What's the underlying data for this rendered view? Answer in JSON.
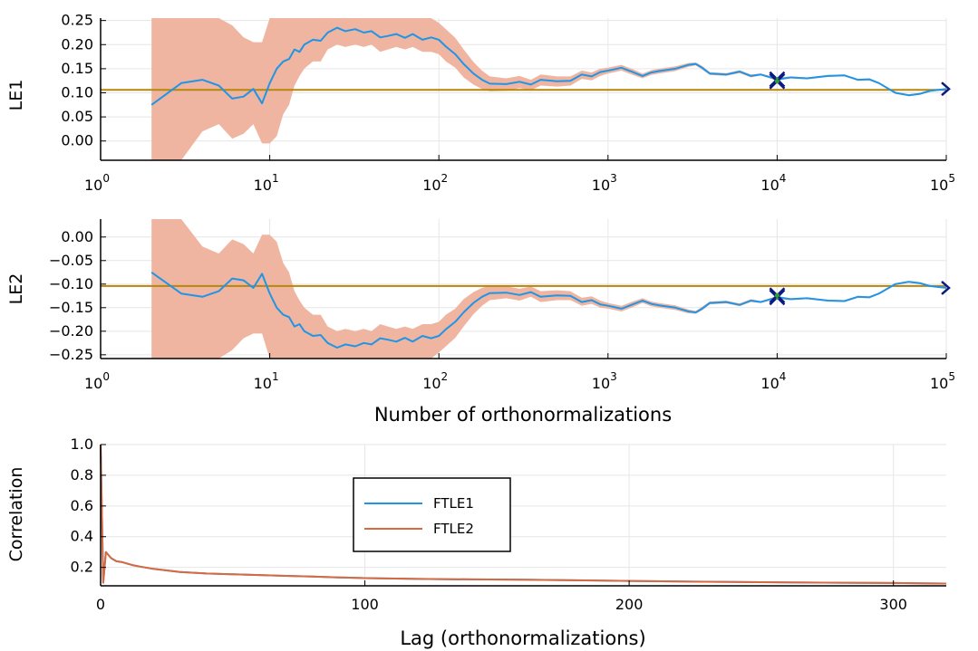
{
  "chart_data": [
    {
      "type": "line",
      "ylabel": "LE1",
      "xlabel": "",
      "xscale": "log10",
      "xlim": [
        1,
        100000
      ],
      "ylim": [
        -0.04,
        0.255
      ],
      "grid": true,
      "x_ticks": [
        {
          "base": "10",
          "exp": "0"
        },
        {
          "base": "10",
          "exp": "1"
        },
        {
          "base": "10",
          "exp": "2"
        },
        {
          "base": "10",
          "exp": "3"
        },
        {
          "base": "10",
          "exp": "4"
        },
        {
          "base": "10",
          "exp": "5"
        }
      ],
      "y_ticks": [
        {
          "v": 0.25,
          "label": "0.25"
        },
        {
          "v": 0.2,
          "label": "0.20"
        },
        {
          "v": 0.15,
          "label": "0.15"
        },
        {
          "v": 0.1,
          "label": "0.10"
        },
        {
          "v": 0.05,
          "label": "0.05"
        },
        {
          "v": 0.0,
          "label": "0.00"
        }
      ],
      "reference_line": 0.106,
      "x": [
        2,
        3,
        4,
        5,
        6,
        7,
        8,
        9,
        10,
        11,
        12,
        13,
        14,
        15,
        16,
        18,
        20,
        22,
        25,
        28,
        32,
        36,
        40,
        45,
        50,
        56,
        63,
        70,
        80,
        90,
        100,
        110,
        125,
        140,
        160,
        180,
        200,
        250,
        300,
        350,
        400,
        500,
        600,
        700,
        800,
        900,
        1000,
        1200,
        1400,
        1600,
        1800,
        2000,
        2500,
        3000,
        3300,
        3600,
        4000,
        5000,
        6000,
        7000,
        8000,
        10000,
        12000,
        15000,
        20000,
        25000,
        30000,
        35000,
        40000,
        50000,
        60000,
        70000,
        80000,
        100000
      ],
      "mean": [
        0.075,
        0.12,
        0.127,
        0.115,
        0.088,
        0.092,
        0.108,
        0.078,
        0.12,
        0.15,
        0.165,
        0.17,
        0.19,
        0.185,
        0.2,
        0.21,
        0.208,
        0.225,
        0.235,
        0.228,
        0.232,
        0.225,
        0.228,
        0.215,
        0.218,
        0.222,
        0.214,
        0.222,
        0.21,
        0.215,
        0.21,
        0.196,
        0.18,
        0.16,
        0.14,
        0.127,
        0.119,
        0.118,
        0.123,
        0.117,
        0.127,
        0.124,
        0.125,
        0.138,
        0.134,
        0.143,
        0.146,
        0.152,
        0.143,
        0.135,
        0.142,
        0.145,
        0.15,
        0.158,
        0.16,
        0.152,
        0.14,
        0.138,
        0.144,
        0.135,
        0.138,
        0.128,
        0.132,
        0.13,
        0.135,
        0.136,
        0.127,
        0.128,
        0.12,
        0.1,
        0.095,
        0.098,
        0.104,
        0.108
      ],
      "band_upper": [
        0.255,
        0.255,
        0.255,
        0.255,
        0.24,
        0.215,
        0.205,
        0.205,
        0.255,
        0.255,
        0.255,
        0.255,
        0.255,
        0.255,
        0.255,
        0.255,
        0.255,
        0.255,
        0.255,
        0.255,
        0.255,
        0.255,
        0.255,
        0.255,
        0.255,
        0.255,
        0.255,
        0.255,
        0.255,
        0.255,
        0.245,
        0.232,
        0.214,
        0.19,
        0.164,
        0.146,
        0.134,
        0.13,
        0.135,
        0.127,
        0.138,
        0.134,
        0.134,
        0.146,
        0.142,
        0.15,
        0.152,
        0.158,
        0.149,
        0.14,
        0.147,
        0.15,
        0.155,
        0.162,
        0.163,
        0.156,
        0.143,
        0.141,
        0.147,
        0.138,
        0.14,
        0.131,
        0.134,
        0.132,
        0.137,
        0.138,
        0.129,
        0.13,
        0.122,
        0.102,
        0.097,
        0.1,
        0.106,
        0.109
      ],
      "band_lower": [
        -0.04,
        -0.04,
        0.02,
        0.035,
        0.005,
        0.015,
        0.035,
        -0.005,
        -0.005,
        0.01,
        0.055,
        0.075,
        0.115,
        0.135,
        0.15,
        0.165,
        0.165,
        0.19,
        0.2,
        0.195,
        0.2,
        0.195,
        0.2,
        0.185,
        0.19,
        0.195,
        0.19,
        0.195,
        0.185,
        0.185,
        0.18,
        0.165,
        0.152,
        0.132,
        0.117,
        0.108,
        0.103,
        0.104,
        0.11,
        0.105,
        0.115,
        0.113,
        0.115,
        0.129,
        0.126,
        0.135,
        0.14,
        0.146,
        0.137,
        0.13,
        0.137,
        0.14,
        0.145,
        0.154,
        0.157,
        0.148,
        0.137,
        0.135,
        0.141,
        0.132,
        0.136,
        0.125,
        0.13,
        0.128,
        0.133,
        0.134,
        0.125,
        0.126,
        0.118,
        0.098,
        0.093,
        0.096,
        0.102,
        0.107
      ],
      "markers": [
        {
          "x": 10000,
          "y": 0.128,
          "shape": "x"
        },
        {
          "x": 10000,
          "y": 0.124,
          "shape": "x"
        },
        {
          "x": 100000,
          "y": 0.108,
          "shape": "triangle-right"
        }
      ],
      "colors": {
        "mean": "#1f95e8",
        "band": "#efb5a0",
        "reference": "#b8860b",
        "markers": "#0b1a80",
        "marker_mid": "#2e9c3c"
      }
    },
    {
      "type": "line",
      "ylabel": "LE2",
      "xlabel": "Number of orthonormalizations",
      "xscale": "log10",
      "xlim": [
        1,
        100000
      ],
      "ylim": [
        -0.258,
        0.038
      ],
      "grid": true,
      "x_ticks": [
        {
          "base": "10",
          "exp": "0"
        },
        {
          "base": "10",
          "exp": "1"
        },
        {
          "base": "10",
          "exp": "2"
        },
        {
          "base": "10",
          "exp": "3"
        },
        {
          "base": "10",
          "exp": "4"
        },
        {
          "base": "10",
          "exp": "5"
        }
      ],
      "y_ticks": [
        {
          "v": 0.0,
          "label": "0.00"
        },
        {
          "v": -0.05,
          "label": "−0.05"
        },
        {
          "v": -0.1,
          "label": "−0.10"
        },
        {
          "v": -0.15,
          "label": "−0.15"
        },
        {
          "v": -0.2,
          "label": "−0.20"
        },
        {
          "v": -0.25,
          "label": "−0.25"
        }
      ],
      "reference_line": -0.104,
      "x": [
        2,
        3,
        4,
        5,
        6,
        7,
        8,
        9,
        10,
        11,
        12,
        13,
        14,
        15,
        16,
        18,
        20,
        22,
        25,
        28,
        32,
        36,
        40,
        45,
        50,
        56,
        63,
        70,
        80,
        90,
        100,
        110,
        125,
        140,
        160,
        180,
        200,
        250,
        300,
        350,
        400,
        500,
        600,
        700,
        800,
        900,
        1000,
        1200,
        1400,
        1600,
        1800,
        2000,
        2500,
        3000,
        3300,
        3600,
        4000,
        5000,
        6000,
        7000,
        8000,
        10000,
        12000,
        15000,
        20000,
        25000,
        30000,
        35000,
        40000,
        50000,
        60000,
        70000,
        80000,
        100000
      ],
      "mean": [
        -0.075,
        -0.12,
        -0.127,
        -0.115,
        -0.088,
        -0.092,
        -0.108,
        -0.078,
        -0.12,
        -0.15,
        -0.165,
        -0.17,
        -0.19,
        -0.185,
        -0.2,
        -0.21,
        -0.208,
        -0.225,
        -0.235,
        -0.228,
        -0.232,
        -0.225,
        -0.228,
        -0.215,
        -0.218,
        -0.222,
        -0.214,
        -0.222,
        -0.21,
        -0.215,
        -0.21,
        -0.196,
        -0.18,
        -0.16,
        -0.14,
        -0.127,
        -0.119,
        -0.118,
        -0.123,
        -0.117,
        -0.127,
        -0.124,
        -0.125,
        -0.138,
        -0.134,
        -0.143,
        -0.146,
        -0.152,
        -0.143,
        -0.135,
        -0.142,
        -0.145,
        -0.15,
        -0.158,
        -0.16,
        -0.152,
        -0.14,
        -0.138,
        -0.144,
        -0.135,
        -0.138,
        -0.128,
        -0.132,
        -0.13,
        -0.135,
        -0.136,
        -0.127,
        -0.128,
        -0.12,
        -0.1,
        -0.095,
        -0.098,
        -0.104,
        -0.108
      ],
      "band_upper": [
        0.038,
        0.038,
        -0.02,
        -0.035,
        -0.005,
        -0.015,
        -0.035,
        0.005,
        0.005,
        -0.01,
        -0.055,
        -0.075,
        -0.115,
        -0.135,
        -0.15,
        -0.165,
        -0.165,
        -0.19,
        -0.2,
        -0.195,
        -0.2,
        -0.195,
        -0.2,
        -0.185,
        -0.19,
        -0.195,
        -0.19,
        -0.195,
        -0.185,
        -0.185,
        -0.18,
        -0.165,
        -0.152,
        -0.132,
        -0.117,
        -0.108,
        -0.103,
        -0.104,
        -0.11,
        -0.105,
        -0.115,
        -0.113,
        -0.115,
        -0.129,
        -0.126,
        -0.135,
        -0.14,
        -0.146,
        -0.137,
        -0.13,
        -0.137,
        -0.14,
        -0.145,
        -0.154,
        -0.157,
        -0.148,
        -0.137,
        -0.135,
        -0.141,
        -0.132,
        -0.136,
        -0.125,
        -0.13,
        -0.128,
        -0.133,
        -0.134,
        -0.125,
        -0.126,
        -0.118,
        -0.098,
        -0.093,
        -0.096,
        -0.102,
        -0.107
      ],
      "band_lower": [
        -0.258,
        -0.258,
        -0.258,
        -0.258,
        -0.24,
        -0.215,
        -0.205,
        -0.205,
        -0.258,
        -0.258,
        -0.258,
        -0.258,
        -0.258,
        -0.258,
        -0.258,
        -0.258,
        -0.258,
        -0.258,
        -0.258,
        -0.258,
        -0.258,
        -0.258,
        -0.258,
        -0.258,
        -0.258,
        -0.258,
        -0.258,
        -0.258,
        -0.258,
        -0.258,
        -0.245,
        -0.232,
        -0.214,
        -0.19,
        -0.164,
        -0.146,
        -0.134,
        -0.13,
        -0.135,
        -0.127,
        -0.138,
        -0.134,
        -0.134,
        -0.146,
        -0.142,
        -0.15,
        -0.152,
        -0.158,
        -0.149,
        -0.14,
        -0.147,
        -0.15,
        -0.155,
        -0.162,
        -0.163,
        -0.156,
        -0.143,
        -0.141,
        -0.147,
        -0.138,
        -0.14,
        -0.131,
        -0.134,
        -0.132,
        -0.137,
        -0.138,
        -0.129,
        -0.13,
        -0.122,
        -0.102,
        -0.097,
        -0.1,
        -0.106,
        -0.109
      ],
      "markers": [
        {
          "x": 10000,
          "y": -0.128,
          "shape": "x"
        },
        {
          "x": 10000,
          "y": -0.124,
          "shape": "x"
        },
        {
          "x": 100000,
          "y": -0.108,
          "shape": "triangle-right"
        }
      ],
      "colors": {
        "mean": "#1f95e8",
        "band": "#efb5a0",
        "reference": "#b8860b",
        "markers": "#0b1a80",
        "marker_mid": "#2e9c3c"
      }
    },
    {
      "type": "line",
      "ylabel": "Correlation",
      "xlabel": "Lag (orthonormalizations)",
      "xlim": [
        0,
        320
      ],
      "ylim": [
        0.08,
        1.0
      ],
      "grid": true,
      "x_ticks": [
        {
          "v": 0,
          "label": "0"
        },
        {
          "v": 100,
          "label": "100"
        },
        {
          "v": 200,
          "label": "200"
        },
        {
          "v": 300,
          "label": "300"
        }
      ],
      "y_ticks": [
        {
          "v": 1.0,
          "label": "1.0"
        },
        {
          "v": 0.8,
          "label": "0.8"
        },
        {
          "v": 0.6,
          "label": "0.6"
        },
        {
          "v": 0.4,
          "label": "0.4"
        },
        {
          "v": 0.2,
          "label": "0.2"
        }
      ],
      "legend": {
        "position": "inside-upper-middle",
        "entries": [
          "FTLE1",
          "FTLE2"
        ]
      },
      "series": [
        {
          "name": "FTLE1",
          "color": "#1f95e8",
          "x": [
            0,
            1,
            2,
            3,
            4,
            5,
            6,
            8,
            10,
            12,
            15,
            20,
            25,
            30,
            40,
            50,
            60,
            70,
            80,
            90,
            100,
            120,
            140,
            160,
            180,
            200,
            220,
            240,
            260,
            280,
            300,
            320
          ],
          "y": [
            1.0,
            0.1,
            0.3,
            0.28,
            0.26,
            0.25,
            0.24,
            0.235,
            0.225,
            0.215,
            0.205,
            0.19,
            0.18,
            0.17,
            0.16,
            0.155,
            0.15,
            0.145,
            0.14,
            0.135,
            0.13,
            0.125,
            0.122,
            0.12,
            0.116,
            0.112,
            0.108,
            0.105,
            0.102,
            0.1,
            0.098,
            0.095
          ]
        },
        {
          "name": "FTLE2",
          "color": "#d9693f",
          "x": [
            0,
            1,
            2,
            3,
            4,
            5,
            6,
            8,
            10,
            12,
            15,
            20,
            25,
            30,
            40,
            50,
            60,
            70,
            80,
            90,
            100,
            120,
            140,
            160,
            180,
            200,
            220,
            240,
            260,
            280,
            300,
            320
          ],
          "y": [
            1.0,
            0.1,
            0.3,
            0.28,
            0.26,
            0.25,
            0.24,
            0.235,
            0.225,
            0.215,
            0.205,
            0.19,
            0.18,
            0.17,
            0.16,
            0.155,
            0.15,
            0.145,
            0.14,
            0.135,
            0.13,
            0.125,
            0.122,
            0.12,
            0.116,
            0.112,
            0.108,
            0.105,
            0.102,
            0.1,
            0.098,
            0.095
          ]
        }
      ]
    }
  ]
}
